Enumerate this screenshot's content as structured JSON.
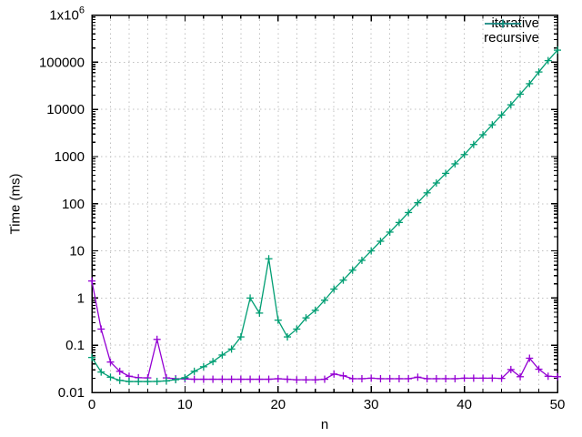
{
  "figure": {
    "background": "#ffffff",
    "x_axis_title": "n",
    "y_axis_title": "Time (ms)"
  },
  "chart_data": {
    "type": "line",
    "title": "",
    "xlabel": "n",
    "ylabel": "Time (ms)",
    "x_scale": "linear",
    "y_scale": "log",
    "xlim": [
      0,
      50
    ],
    "ylim": [
      0.01,
      1000000
    ],
    "x_major_ticks": [
      0,
      10,
      20,
      30,
      40,
      50
    ],
    "x_grid_step": 2,
    "y_tick_labels": [
      {
        "value": 0.01,
        "label": "0.01"
      },
      {
        "value": 0.1,
        "label": "0.1"
      },
      {
        "value": 1,
        "label": "1"
      },
      {
        "value": 10,
        "label": "10"
      },
      {
        "value": 100,
        "label": "100"
      },
      {
        "value": 1000,
        "label": "1000"
      },
      {
        "value": 10000,
        "label": "10000"
      },
      {
        "value": 100000,
        "label": "100000"
      },
      {
        "value": 1000000,
        "label": "1x10^6"
      }
    ],
    "grid": true,
    "grid_color": "#c0c0c0",
    "border_color": "#000000",
    "legend_position": "top-right-inside",
    "x": [
      0,
      1,
      2,
      3,
      4,
      5,
      6,
      7,
      8,
      9,
      10,
      11,
      12,
      13,
      14,
      15,
      16,
      17,
      18,
      19,
      20,
      21,
      22,
      23,
      24,
      25,
      26,
      27,
      28,
      29,
      30,
      31,
      32,
      33,
      34,
      35,
      36,
      37,
      38,
      39,
      40,
      41,
      42,
      43,
      44,
      45,
      46,
      47,
      48,
      49,
      50
    ],
    "series": [
      {
        "name": "iterative",
        "color": "#9400d3",
        "marker": "plus",
        "values": [
          2.3,
          0.22,
          0.044,
          0.028,
          0.022,
          0.0205,
          0.0203,
          0.133,
          0.0203,
          0.0195,
          0.0193,
          0.019,
          0.019,
          0.019,
          0.019,
          0.019,
          0.019,
          0.019,
          0.019,
          0.019,
          0.0195,
          0.019,
          0.0185,
          0.0185,
          0.0185,
          0.019,
          0.0245,
          0.0225,
          0.0195,
          0.0195,
          0.02,
          0.0195,
          0.0195,
          0.0195,
          0.0195,
          0.021,
          0.0195,
          0.0195,
          0.0195,
          0.0195,
          0.02,
          0.02,
          0.02,
          0.02,
          0.0198,
          0.0305,
          0.0215,
          0.053,
          0.031,
          0.022,
          0.0215
        ]
      },
      {
        "name": "recursive",
        "color": "#009e73",
        "marker": "plus",
        "values": [
          0.055,
          0.027,
          0.021,
          0.018,
          0.017,
          0.017,
          0.017,
          0.0171,
          0.0175,
          0.0186,
          0.0205,
          0.028,
          0.035,
          0.045,
          0.062,
          0.083,
          0.15,
          1.0,
          0.48,
          6.8,
          0.34,
          0.15,
          0.22,
          0.38,
          0.55,
          0.9,
          1.55,
          2.4,
          3.9,
          6.3,
          10,
          16,
          25,
          40,
          65,
          105,
          170,
          275,
          440,
          700,
          1100,
          1800,
          2900,
          4700,
          7600,
          12500,
          21000,
          35000,
          62000,
          108000,
          180000
        ]
      }
    ]
  }
}
